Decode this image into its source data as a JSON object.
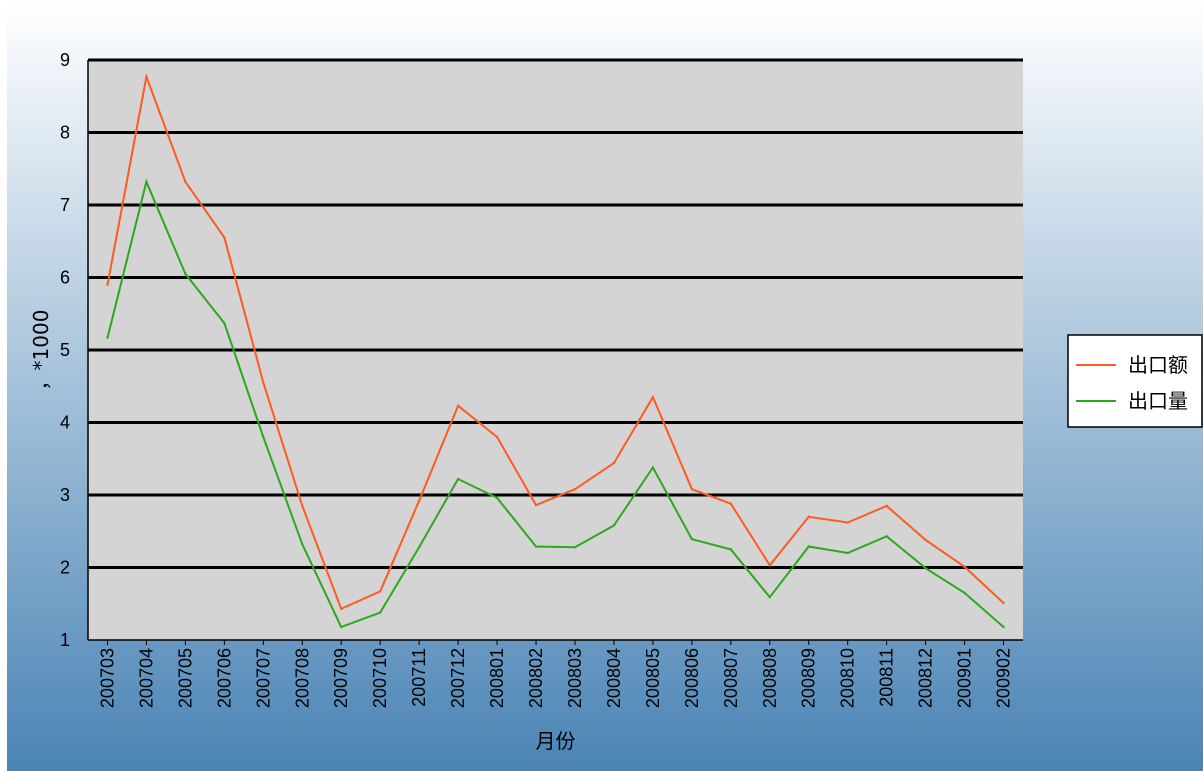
{
  "colors": {
    "background_top": "#ffffff",
    "background_bottom": "#4a84b5",
    "plot_area": "#d4d4d4",
    "gridline": "#000000",
    "series_export_value": "#ff5a1f",
    "series_export_volume": "#2ca81c"
  },
  "chart_data": {
    "type": "line",
    "title": "",
    "xlabel": "月份",
    "ylabel": "，*1000",
    "ylim": [
      1,
      9
    ],
    "yticks": [
      "1",
      "2",
      "3",
      "4",
      "5",
      "6",
      "7",
      "8",
      "9"
    ],
    "grid": true,
    "legend_position": "right",
    "categories": [
      "200703",
      "200704",
      "200705",
      "200706",
      "200707",
      "200708",
      "200709",
      "200710",
      "200711",
      "200712",
      "200801",
      "200802",
      "200803",
      "200804",
      "200805",
      "200806",
      "200807",
      "200808",
      "200809",
      "200810",
      "200811",
      "200812",
      "200901",
      "200902"
    ],
    "series": [
      {
        "name": "出口额",
        "color": "#ff5a1f",
        "values": [
          5.9,
          8.77,
          7.32,
          6.55,
          4.55,
          2.85,
          1.43,
          1.67,
          2.92,
          4.23,
          3.8,
          2.86,
          3.08,
          3.44,
          4.35,
          3.08,
          2.88,
          2.03,
          2.7,
          2.62,
          2.85,
          2.38,
          2.01,
          1.51
        ]
      },
      {
        "name": "出口量",
        "color": "#2ca81c",
        "values": [
          5.17,
          7.32,
          6.05,
          5.37,
          3.8,
          2.32,
          1.18,
          1.38,
          2.28,
          3.22,
          2.96,
          2.29,
          2.28,
          2.58,
          3.38,
          2.39,
          2.25,
          1.59,
          2.29,
          2.2,
          2.43,
          1.99,
          1.65,
          1.18
        ]
      }
    ]
  }
}
